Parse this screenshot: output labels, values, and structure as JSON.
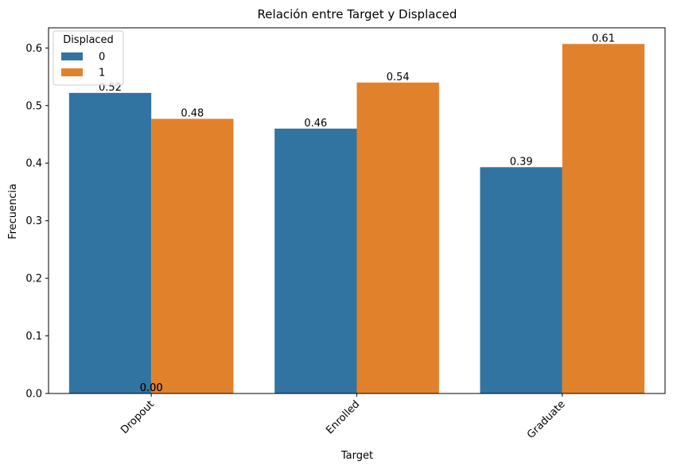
{
  "chart_data": {
    "type": "bar",
    "title": "Relación entre Target y Displaced",
    "xlabel": "Target",
    "ylabel": "Frecuencia",
    "categories": [
      "Dropout",
      "Enrolled",
      "Graduate"
    ],
    "ylim": [
      0,
      0.635
    ],
    "yticks": [
      "0.0",
      "0.1",
      "0.2",
      "0.3",
      "0.4",
      "0.5",
      "0.6"
    ],
    "legend": {
      "title": "Displaced",
      "placement": "top-left"
    },
    "series": [
      {
        "name": "0",
        "color": "#3274a1",
        "values": [
          0.522,
          0.46,
          0.393
        ],
        "labels": [
          "0.52",
          "0.46",
          "0.39"
        ]
      },
      {
        "name": "1",
        "color": "#e1812c",
        "values": [
          0.477,
          0.54,
          0.607
        ],
        "labels": [
          "0.48",
          "0.54",
          "0.61"
        ]
      }
    ],
    "extra_labels": [
      "0.00",
      "0.00"
    ],
    "grid": false
  }
}
